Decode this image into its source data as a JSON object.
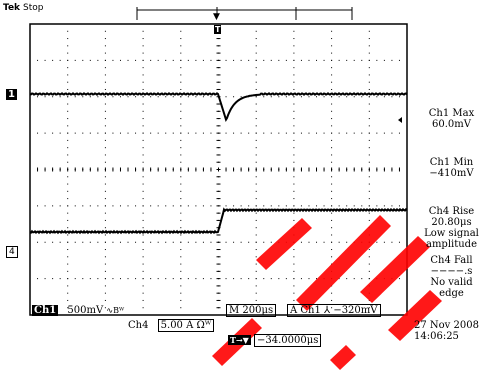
{
  "header": {
    "brand": "Tek",
    "state": "Stop"
  },
  "markers": {
    "trigger_top": "T",
    "ch1": "1",
    "ch4": "4"
  },
  "measurements": {
    "ch1_max": {
      "label": "Ch1 Max",
      "value": "60.0mV"
    },
    "ch1_min": {
      "label": "Ch1 Min",
      "value": "−410mV"
    },
    "ch4_rise": {
      "label": "Ch4 Rise",
      "value": "20.80μs",
      "note1": "Low signal",
      "note2": "amplitude"
    },
    "ch4_fall": {
      "label": "Ch4 Fall",
      "value": "−−−−.s",
      "note1": "No valid",
      "note2": "edge"
    }
  },
  "bottom": {
    "ch1_label": "Ch1",
    "ch1_scale": "500mV",
    "ch1_coupling": "∿Βᵂ",
    "timebase": "M 200μs",
    "trigger": "A  Ch1  ⅄  −320mV",
    "ch4_label": "Ch4",
    "ch4_scale": "5.00 A Ωᵂ",
    "trig_pos_marker": "T→▼",
    "trig_pos": "−34.0000μs",
    "date": "27 Nov 2008",
    "time": "14:06:25"
  },
  "colors": {
    "trace": "#000000",
    "grid": "#000000",
    "watermark": "#ff0000"
  }
}
